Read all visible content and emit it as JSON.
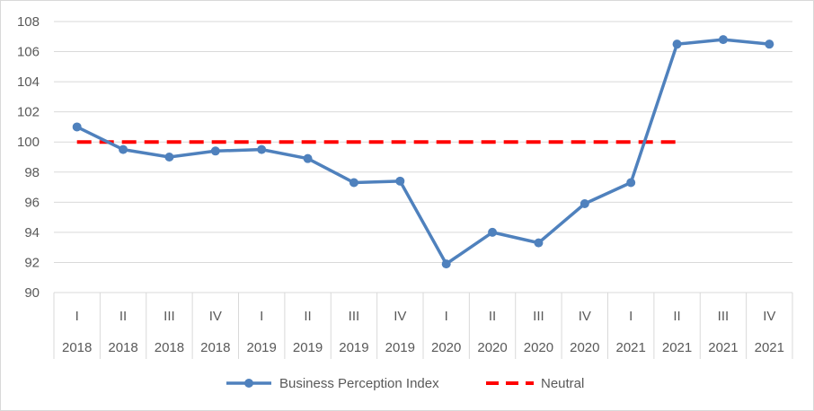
{
  "chart_data": {
    "type": "line",
    "title": "",
    "xlabel": "",
    "ylabel": "",
    "ylim": [
      90,
      108
    ],
    "yticks": [
      90,
      92,
      94,
      96,
      98,
      100,
      102,
      104,
      106,
      108
    ],
    "grid": true,
    "legend_position": "bottom",
    "categories": [
      {
        "quarter": "I",
        "year": "2018"
      },
      {
        "quarter": "II",
        "year": "2018"
      },
      {
        "quarter": "III",
        "year": "2018"
      },
      {
        "quarter": "IV",
        "year": "2018"
      },
      {
        "quarter": "I",
        "year": "2019"
      },
      {
        "quarter": "II",
        "year": "2019"
      },
      {
        "quarter": "III",
        "year": "2019"
      },
      {
        "quarter": "IV",
        "year": "2019"
      },
      {
        "quarter": "I",
        "year": "2020"
      },
      {
        "quarter": "II",
        "year": "2020"
      },
      {
        "quarter": "III",
        "year": "2020"
      },
      {
        "quarter": "IV",
        "year": "2020"
      },
      {
        "quarter": "I",
        "year": "2021"
      },
      {
        "quarter": "II",
        "year": "2021"
      },
      {
        "quarter": "III",
        "year": "2021"
      },
      {
        "quarter": "IV",
        "year": "2021"
      }
    ],
    "series": [
      {
        "name": "Business Perception Index",
        "color": "#4f81bd",
        "style": "solid-markers",
        "values": [
          101.0,
          99.5,
          99.0,
          99.4,
          99.5,
          98.9,
          97.3,
          97.4,
          91.9,
          94.0,
          93.3,
          95.9,
          97.3,
          106.5,
          106.8,
          106.5
        ]
      },
      {
        "name": "Neutral",
        "color": "#ff0000",
        "style": "dashed",
        "values": [
          100,
          100,
          100,
          100,
          100,
          100,
          100,
          100,
          100,
          100,
          100,
          100,
          100,
          100,
          null,
          null
        ]
      }
    ]
  }
}
